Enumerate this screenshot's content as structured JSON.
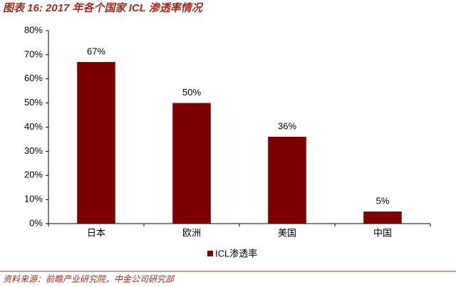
{
  "chart_data": {
    "type": "bar",
    "title": "图表 16: 2017 年各个国家 ICL 渗透率情况",
    "source": "资料来源：前瞻产业研究院，中金公司研究部",
    "categories": [
      "日本",
      "欧洲",
      "美国",
      "中国"
    ],
    "series": [
      {
        "name": "ICL渗透率",
        "color": "#7b0000",
        "values": [
          67,
          50,
          36,
          5
        ],
        "value_labels": [
          "67%",
          "50%",
          "36%",
          "5%"
        ]
      }
    ],
    "ylim": [
      0,
      80
    ],
    "yticks": [
      {
        "value": 0,
        "label": "0%"
      },
      {
        "value": 10,
        "label": "10%"
      },
      {
        "value": 20,
        "label": "20%"
      },
      {
        "value": 30,
        "label": "30%"
      },
      {
        "value": 40,
        "label": "40%"
      },
      {
        "value": 50,
        "label": "50%"
      },
      {
        "value": 60,
        "label": "60%"
      },
      {
        "value": 70,
        "label": "70%"
      },
      {
        "value": 80,
        "label": "80%"
      }
    ],
    "grid": false
  }
}
